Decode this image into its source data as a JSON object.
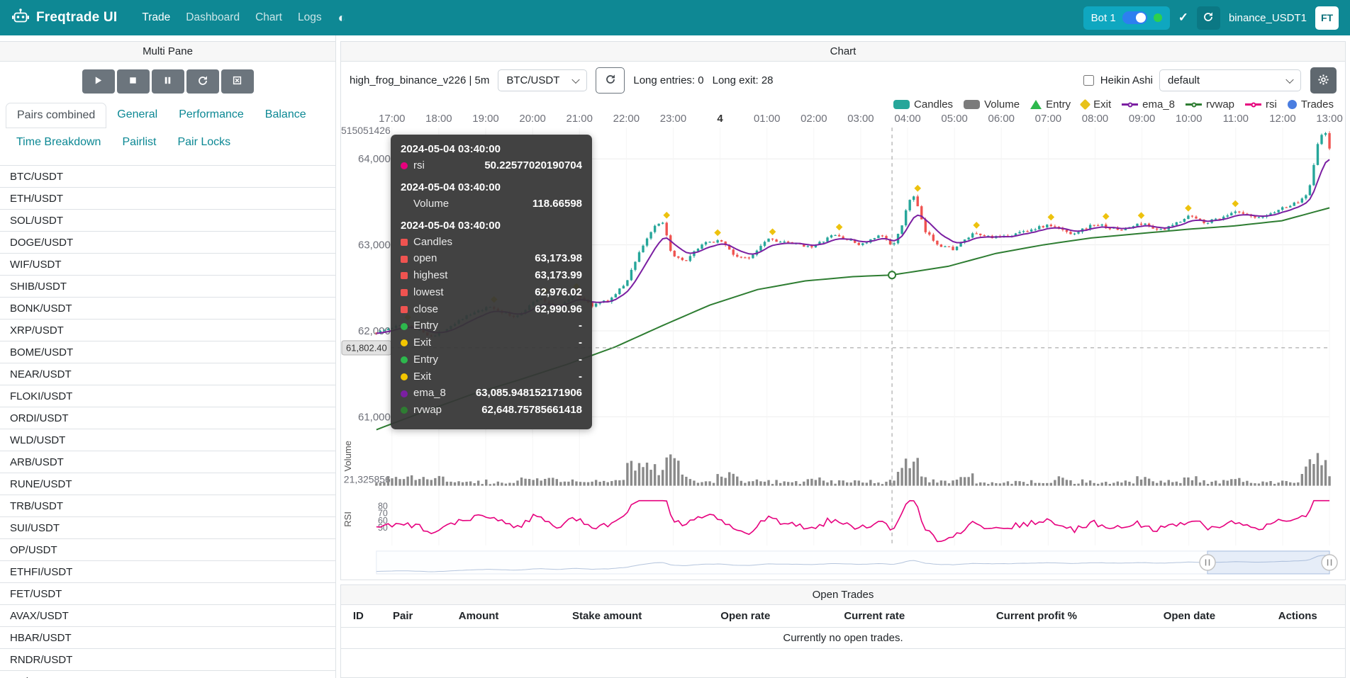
{
  "navbar": {
    "brand": "Freqtrade UI",
    "theme_icon": "◐",
    "check_icon": "✓",
    "items": [
      {
        "label": "Trade",
        "active": true
      },
      {
        "label": "Dashboard",
        "active": false
      },
      {
        "label": "Chart",
        "active": false
      },
      {
        "label": "Logs",
        "active": false
      }
    ],
    "bot_badge": {
      "name": "Bot 1",
      "toggle_on": true,
      "online": true
    },
    "exchange": "binance_USDT1",
    "avatar": "FT"
  },
  "multi_pane": {
    "title": "Multi Pane",
    "controls": [
      "play",
      "stop",
      "pause",
      "reload",
      "forceexit"
    ],
    "tabs": [
      "Pairs combined",
      "General",
      "Performance",
      "Balance",
      "Time Breakdown",
      "Pairlist",
      "Pair Locks"
    ],
    "active_tab": "Pairs combined",
    "pairs": [
      "BTC/USDT",
      "ETH/USDT",
      "SOL/USDT",
      "DOGE/USDT",
      "WIF/USDT",
      "SHIB/USDT",
      "BONK/USDT",
      "XRP/USDT",
      "BOME/USDT",
      "NEAR/USDT",
      "FLOKI/USDT",
      "ORDI/USDT",
      "WLD/USDT",
      "ARB/USDT",
      "RUNE/USDT",
      "TRB/USDT",
      "SUI/USDT",
      "OP/USDT",
      "ETHFI/USDT",
      "FET/USDT",
      "AVAX/USDT",
      "HBAR/USDT",
      "RNDR/USDT",
      "AR/USDT"
    ]
  },
  "chart_panel": {
    "title": "Chart",
    "strategy_label": "high_frog_binance_v226 | 5m",
    "pair_select": "BTC/USDT",
    "entries_label": "Long entries: 0",
    "exits_label": "Long exit: 28",
    "heikin_ashi_label": "Heikin Ashi",
    "plot_config_select": "default",
    "legend": [
      {
        "label": "Candles",
        "shape": "rect",
        "color": "#26a69a"
      },
      {
        "label": "Volume",
        "shape": "rect",
        "color": "#7b7b7b"
      },
      {
        "label": "Entry",
        "shape": "triangle",
        "color": "#2db84d"
      },
      {
        "label": "Exit",
        "shape": "diamond",
        "color": "#e8c21a"
      },
      {
        "label": "ema_8",
        "shape": "line",
        "color": "#7b1fa2"
      },
      {
        "label": "rvwap",
        "shape": "line",
        "color": "#2e7d32"
      },
      {
        "label": "rsi",
        "shape": "line",
        "color": "#e6007e"
      },
      {
        "label": "Trades",
        "shape": "circle",
        "color": "#4a7de0"
      }
    ],
    "tooltip": {
      "sections": [
        {
          "time": "2024-05-04 03:40:00",
          "rows": [
            {
              "marker": "circle",
              "color": "#e6007e",
              "label": "rsi",
              "value": "50.22577020190704"
            }
          ]
        },
        {
          "time": "2024-05-04 03:40:00",
          "rows": [
            {
              "marker": "none",
              "color": "",
              "label": "Volume",
              "value": "118.66598"
            }
          ]
        },
        {
          "time": "2024-05-04 03:40:00",
          "rows": [
            {
              "marker": "square",
              "color": "#ef5350",
              "label": "Candles",
              "value": ""
            },
            {
              "marker": "square",
              "color": "#ef5350",
              "label": "open",
              "value": "63,173.98"
            },
            {
              "marker": "square",
              "color": "#ef5350",
              "label": "highest",
              "value": "63,173.99"
            },
            {
              "marker": "square",
              "color": "#ef5350",
              "label": "lowest",
              "value": "62,976.02"
            },
            {
              "marker": "square",
              "color": "#ef5350",
              "label": "close",
              "value": "62,990.96"
            },
            {
              "marker": "circle",
              "color": "#2db84d",
              "label": "Entry",
              "value": "-"
            },
            {
              "marker": "circle",
              "color": "#f3c500",
              "label": "Exit",
              "value": "-"
            },
            {
              "marker": "circle",
              "color": "#2db84d",
              "label": "Entry",
              "value": "-"
            },
            {
              "marker": "circle",
              "color": "#f3c500",
              "label": "Exit",
              "value": "-"
            },
            {
              "marker": "circle",
              "color": "#7b1fa2",
              "label": "ema_8",
              "value": "63,085.948152171906"
            },
            {
              "marker": "circle",
              "color": "#2e7d32",
              "label": "rvwap",
              "value": "62,648.75785661418"
            }
          ]
        }
      ]
    }
  },
  "chart_data": {
    "type": "candlestick",
    "pair": "BTC/USDT",
    "timeframe": "5m",
    "seed": 1337,
    "candle_count": 244,
    "time_axis": [
      "17:00",
      "18:00",
      "19:00",
      "20:00",
      "21:00",
      "22:00",
      "23:00",
      "4",
      "01:00",
      "02:00",
      "03:00",
      "04:00",
      "05:00",
      "06:00",
      "07:00",
      "08:00",
      "09:00",
      "10:00",
      "11:00",
      "12:00",
      "13:00"
    ],
    "price_axis_labels": [
      "64,000",
      "63,000",
      "62,000",
      "61,000"
    ],
    "price_axis_values": [
      64000,
      63000,
      62000,
      61000
    ],
    "volume_axis_top_label": "515051426",
    "volume_axis_label": "21,325856",
    "volume_pane_title": "Volume",
    "rsi_pane_title": "RSI",
    "rsi_axis_labels": [
      "80",
      "70",
      "60",
      "50"
    ],
    "rsi_axis_values": [
      80,
      70,
      60,
      50
    ],
    "crosshair": {
      "time_fraction": 0.541,
      "price_value": 61802.4,
      "price_label": "61,802.40",
      "rvwap_value": 62648.75785661418
    },
    "noise": 34,
    "exit_count": 28,
    "price_path": [
      [
        0,
        61980
      ],
      [
        0.03,
        62080
      ],
      [
        0.06,
        61930
      ],
      [
        0.09,
        62150
      ],
      [
        0.12,
        62280
      ],
      [
        0.145,
        62150
      ],
      [
        0.17,
        62380
      ],
      [
        0.19,
        62270
      ],
      [
        0.21,
        62430
      ],
      [
        0.225,
        62290
      ],
      [
        0.245,
        62360
      ],
      [
        0.262,
        62560
      ],
      [
        0.275,
        62900
      ],
      [
        0.29,
        63190
      ],
      [
        0.3,
        63260
      ],
      [
        0.311,
        62860
      ],
      [
        0.325,
        62800
      ],
      [
        0.34,
        63000
      ],
      [
        0.361,
        63060
      ],
      [
        0.375,
        62880
      ],
      [
        0.39,
        62830
      ],
      [
        0.41,
        63080
      ],
      [
        0.43,
        63020
      ],
      [
        0.459,
        62980
      ],
      [
        0.48,
        63120
      ],
      [
        0.508,
        63000
      ],
      [
        0.53,
        63110
      ],
      [
        0.541,
        62990
      ],
      [
        0.551,
        63190
      ],
      [
        0.558,
        63520
      ],
      [
        0.565,
        63560
      ],
      [
        0.575,
        63160
      ],
      [
        0.59,
        63000
      ],
      [
        0.606,
        62950
      ],
      [
        0.625,
        63120
      ],
      [
        0.656,
        63080
      ],
      [
        0.68,
        63160
      ],
      [
        0.705,
        63230
      ],
      [
        0.73,
        63130
      ],
      [
        0.754,
        63240
      ],
      [
        0.78,
        63170
      ],
      [
        0.803,
        63250
      ],
      [
        0.825,
        63160
      ],
      [
        0.852,
        63340
      ],
      [
        0.87,
        63260
      ],
      [
        0.902,
        63380
      ],
      [
        0.925,
        63300
      ],
      [
        0.951,
        63430
      ],
      [
        0.968,
        63500
      ],
      [
        0.978,
        63620
      ],
      [
        0.988,
        64200
      ],
      [
        0.995,
        64330
      ],
      [
        1,
        64120
      ]
    ],
    "rvwap_path": [
      [
        0,
        60850
      ],
      [
        0.05,
        61060
      ],
      [
        0.1,
        61260
      ],
      [
        0.15,
        61430
      ],
      [
        0.2,
        61610
      ],
      [
        0.25,
        61810
      ],
      [
        0.3,
        62060
      ],
      [
        0.35,
        62300
      ],
      [
        0.4,
        62480
      ],
      [
        0.45,
        62580
      ],
      [
        0.5,
        62630
      ],
      [
        0.541,
        62649
      ],
      [
        0.6,
        62750
      ],
      [
        0.65,
        62900
      ],
      [
        0.7,
        63000
      ],
      [
        0.75,
        63080
      ],
      [
        0.8,
        63130
      ],
      [
        0.85,
        63180
      ],
      [
        0.9,
        63220
      ],
      [
        0.95,
        63280
      ],
      [
        1,
        63430
      ]
    ],
    "volume_spikes": [
      [
        0.04,
        0.03,
        14
      ],
      [
        0.17,
        0.02,
        12
      ],
      [
        0.29,
        0.028,
        55
      ],
      [
        0.315,
        0.012,
        30
      ],
      [
        0.37,
        0.012,
        22
      ],
      [
        0.46,
        0.01,
        16
      ],
      [
        0.558,
        0.012,
        62
      ],
      [
        0.62,
        0.008,
        18
      ],
      [
        0.72,
        0.009,
        20
      ],
      [
        0.803,
        0.008,
        18
      ],
      [
        0.855,
        0.008,
        20
      ],
      [
        0.9,
        0.006,
        14
      ],
      [
        0.985,
        0.014,
        60
      ]
    ],
    "colors": {
      "up": "#26a69a",
      "down": "#ef5350",
      "ema_8": "#7b1fa2",
      "rvwap": "#2e7d32",
      "rsi": "#e6007e",
      "volume": "#8a8a8a",
      "exit_marker": "#edc20e",
      "grid": "#ededed",
      "axis_text": "#6e7079",
      "crosshair": "#999999"
    }
  },
  "open_trades": {
    "title": "Open Trades",
    "columns": [
      "ID",
      "Pair",
      "Amount",
      "Stake amount",
      "Open rate",
      "Current rate",
      "Current profit %",
      "Open date",
      "Actions"
    ],
    "empty_message": "Currently no open trades."
  }
}
